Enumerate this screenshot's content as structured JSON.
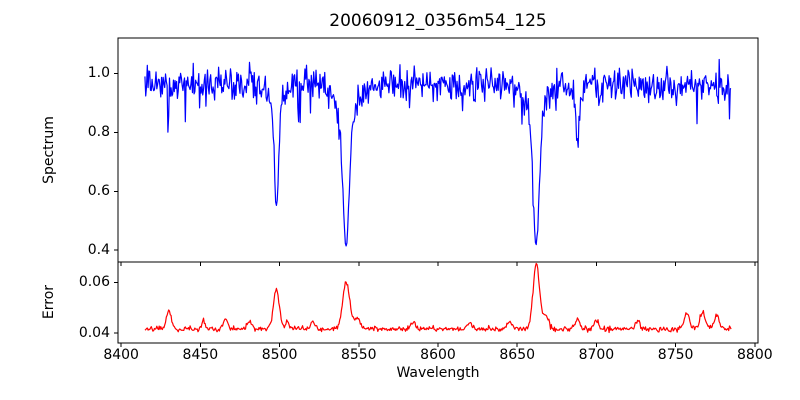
{
  "chart": {
    "title": "20060912_0356m54_125",
    "xlabel": "Wavelength",
    "xlim": [
      8398,
      8802
    ],
    "xticks": [
      {
        "value": 8400,
        "label": "8400"
      },
      {
        "value": 8450,
        "label": "8450"
      },
      {
        "value": 8500,
        "label": "8500"
      },
      {
        "value": 8550,
        "label": "8550"
      },
      {
        "value": 8600,
        "label": "8600"
      },
      {
        "value": 8650,
        "label": "8650"
      },
      {
        "value": 8700,
        "label": "8700"
      },
      {
        "value": 8750,
        "label": "8750"
      },
      {
        "value": 8800,
        "label": "8800"
      }
    ],
    "panels": [
      {
        "name": "spectrum",
        "ylabel": "Spectrum",
        "ylim": [
          0.36,
          1.12
        ],
        "yticks": [
          {
            "value": 1.0,
            "label": "1.0"
          },
          {
            "value": 0.8,
            "label": "0.8"
          },
          {
            "value": 0.6,
            "label": "0.6"
          },
          {
            "value": 0.4,
            "label": "0.4"
          }
        ],
        "line_color": "#0000ff"
      },
      {
        "name": "error",
        "ylabel": "Error",
        "ylim": [
          0.036,
          0.068
        ],
        "yticks": [
          {
            "value": 0.06,
            "label": "0.06"
          },
          {
            "value": 0.04,
            "label": "0.04"
          }
        ],
        "line_color": "#ff0000"
      }
    ]
  },
  "chart_data": [
    {
      "type": "line",
      "panel": "spectrum",
      "series_name": "spectrum",
      "color": "#0000ff",
      "x_start": 8415,
      "x_end": 8785,
      "x_step": 0.5,
      "continuum_level": 0.96,
      "noise_sigma": 0.028,
      "noise_spike_probability": 0.022,
      "noise_spike_min": 0.04,
      "noise_spike_max": 0.13,
      "absorption_lines": [
        {
          "center": 8498.0,
          "depth": 0.33,
          "sigma": 1.3,
          "wing_depth": 0.08,
          "wing_sigma": 4.0,
          "min_flux": 0.55
        },
        {
          "center": 8542.0,
          "depth": 0.44,
          "sigma": 2.0,
          "wing_depth": 0.11,
          "wing_sigma": 6.0,
          "min_flux": 0.41
        },
        {
          "center": 8662.0,
          "depth": 0.43,
          "sigma": 1.9,
          "wing_depth": 0.105,
          "wing_sigma": 6.0,
          "min_flux": 0.425
        },
        {
          "center": 8688.0,
          "depth": 0.16,
          "sigma": 1.0,
          "wing_depth": 0.03,
          "wing_sigma": 3.0,
          "min_flux": 0.77
        }
      ]
    },
    {
      "type": "line",
      "panel": "error",
      "series_name": "error",
      "color": "#ff0000",
      "x_start": 8415,
      "x_end": 8785,
      "x_step": 0.5,
      "base_level": 0.0415,
      "noise_sigma": 0.0005,
      "peaks": [
        {
          "center": 8430,
          "height": 0.0075,
          "sigma": 1.5
        },
        {
          "center": 8452,
          "height": 0.003,
          "sigma": 1.2
        },
        {
          "center": 8466,
          "height": 0.0045,
          "sigma": 1.4
        },
        {
          "center": 8481,
          "height": 0.003,
          "sigma": 1.2
        },
        {
          "center": 8498,
          "height": 0.016,
          "sigma": 1.8,
          "max_value": 0.0577
        },
        {
          "center": 8505,
          "height": 0.003,
          "sigma": 1.5
        },
        {
          "center": 8521,
          "height": 0.003,
          "sigma": 1.3
        },
        {
          "center": 8542,
          "height": 0.0185,
          "sigma": 2.2,
          "max_value": 0.0601
        },
        {
          "center": 8549,
          "height": 0.004,
          "sigma": 2.0
        },
        {
          "center": 8584,
          "height": 0.0025,
          "sigma": 1.5
        },
        {
          "center": 8620,
          "height": 0.0025,
          "sigma": 1.5
        },
        {
          "center": 8645,
          "height": 0.003,
          "sigma": 1.5
        },
        {
          "center": 8662,
          "height": 0.026,
          "sigma": 2.0,
          "max_value": 0.0675
        },
        {
          "center": 8668,
          "height": 0.005,
          "sigma": 2.0
        },
        {
          "center": 8688,
          "height": 0.004,
          "sigma": 1.5
        },
        {
          "center": 8700,
          "height": 0.0035,
          "sigma": 1.3
        },
        {
          "center": 8726,
          "height": 0.003,
          "sigma": 1.3
        },
        {
          "center": 8757,
          "height": 0.006,
          "sigma": 1.8
        },
        {
          "center": 8767,
          "height": 0.0065,
          "sigma": 1.5
        },
        {
          "center": 8776,
          "height": 0.005,
          "sigma": 1.3
        }
      ]
    }
  ],
  "style": {
    "background": "#ffffff",
    "axis_color": "#000000",
    "text_color": "#000000",
    "spectrum_color": "#0000ff",
    "error_color": "#ff0000"
  }
}
